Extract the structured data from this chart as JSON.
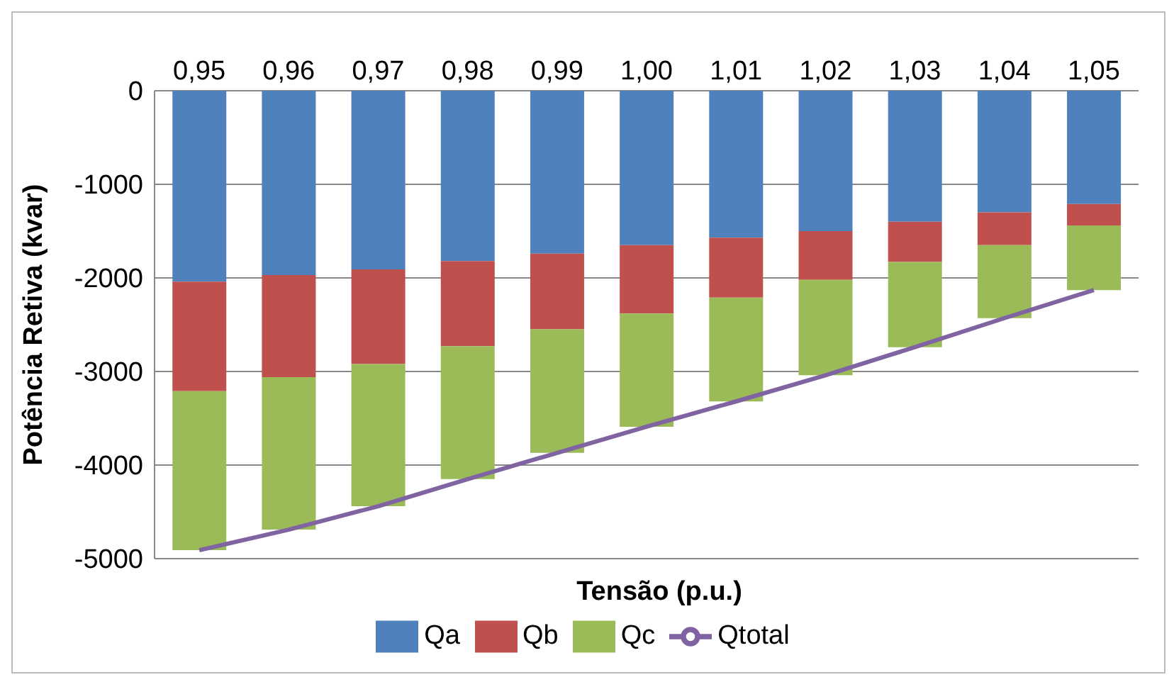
{
  "chart_data": {
    "type": "bar",
    "stacked": true,
    "xlabel": "Tensão (p.u.)",
    "ylabel": "Potência Retiva (kvar)",
    "categories": [
      "0,95",
      "0,96",
      "0,97",
      "0,98",
      "0,99",
      "1,00",
      "1,01",
      "1,02",
      "1,03",
      "1,04",
      "1,05"
    ],
    "series": [
      {
        "name": "Qa",
        "color": "#4f81bd",
        "values": [
          -2040,
          -1970,
          -1910,
          -1820,
          -1740,
          -1650,
          -1570,
          -1500,
          -1400,
          -1300,
          -1210
        ]
      },
      {
        "name": "Qb",
        "color": "#c0504d",
        "values": [
          -1170,
          -1090,
          -1010,
          -910,
          -810,
          -730,
          -640,
          -520,
          -430,
          -350,
          -230
        ]
      },
      {
        "name": "Qc",
        "color": "#9bbb59",
        "values": [
          -1700,
          -1630,
          -1520,
          -1420,
          -1320,
          -1210,
          -1110,
          -1020,
          -910,
          -780,
          -690
        ]
      },
      {
        "name": "Qtotal",
        "type": "line",
        "color": "#8064a2",
        "values": [
          -4910,
          -4690,
          -4440,
          -4150,
          -3870,
          -3590,
          -3320,
          -3040,
          -2740,
          -2430,
          -2130
        ]
      }
    ],
    "ylim": [
      -5000,
      0
    ],
    "yticks": [
      -5000,
      -4000,
      -3000,
      -2000,
      -1000,
      0
    ],
    "grid": "y",
    "legend": "bottom",
    "marker": "none"
  }
}
